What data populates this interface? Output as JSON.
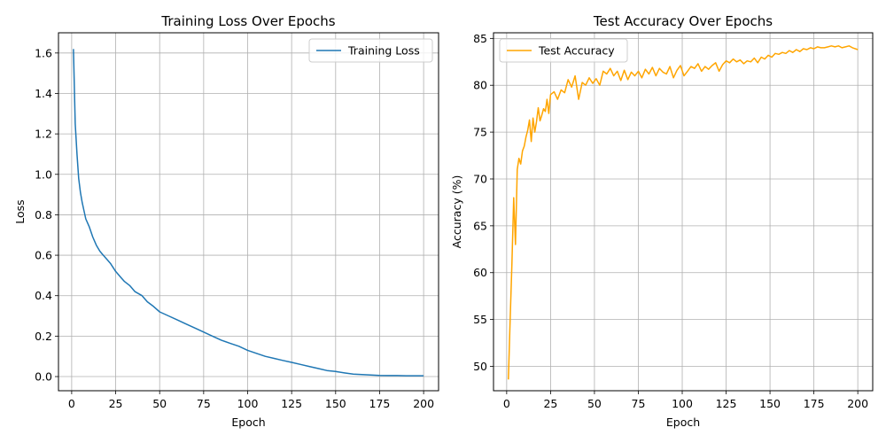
{
  "chart_data": [
    {
      "type": "line",
      "title": "Training Loss Over Epochs",
      "xlabel": "Epoch",
      "ylabel": "Loss",
      "xlim": [
        -7.5,
        208.5
      ],
      "ylim": [
        -0.07,
        1.7
      ],
      "xticks": [
        0,
        25,
        50,
        75,
        100,
        125,
        150,
        175,
        200
      ],
      "yticks": [
        0.0,
        0.2,
        0.4,
        0.6,
        0.8,
        1.0,
        1.2,
        1.4,
        1.6
      ],
      "ytick_labels": [
        "0.0",
        "0.2",
        "0.4",
        "0.6",
        "0.8",
        "1.0",
        "1.2",
        "1.4",
        "1.6"
      ],
      "grid": true,
      "legend_position": "top-right",
      "series": [
        {
          "name": "Training Loss",
          "color": "#1f77b4",
          "x": [
            1,
            2,
            3,
            4,
            5,
            6,
            7,
            8,
            9,
            10,
            12,
            14,
            16,
            18,
            20,
            22,
            25,
            28,
            30,
            33,
            36,
            40,
            43,
            46,
            50,
            55,
            60,
            65,
            70,
            75,
            80,
            85,
            90,
            95,
            100,
            105,
            110,
            115,
            120,
            125,
            130,
            135,
            140,
            145,
            150,
            155,
            160,
            165,
            170,
            175,
            180,
            185,
            190,
            195,
            200
          ],
          "y": [
            1.62,
            1.25,
            1.1,
            0.98,
            0.91,
            0.86,
            0.82,
            0.78,
            0.76,
            0.74,
            0.69,
            0.65,
            0.62,
            0.6,
            0.58,
            0.56,
            0.52,
            0.49,
            0.47,
            0.45,
            0.42,
            0.4,
            0.37,
            0.35,
            0.32,
            0.3,
            0.28,
            0.26,
            0.24,
            0.22,
            0.2,
            0.18,
            0.165,
            0.15,
            0.13,
            0.115,
            0.1,
            0.09,
            0.08,
            0.07,
            0.06,
            0.05,
            0.04,
            0.03,
            0.025,
            0.018,
            0.012,
            0.01,
            0.008,
            0.006,
            0.005,
            0.005,
            0.004,
            0.004,
            0.004
          ]
        }
      ]
    },
    {
      "type": "line",
      "title": "Test Accuracy Over Epochs",
      "xlabel": "Epoch",
      "ylabel": "Accuracy (%)",
      "xlim": [
        -7.5,
        208.5
      ],
      "ylim": [
        47.4,
        85.6
      ],
      "xticks": [
        0,
        25,
        50,
        75,
        100,
        125,
        150,
        175,
        200
      ],
      "yticks": [
        50,
        55,
        60,
        65,
        70,
        75,
        80,
        85
      ],
      "ytick_labels": [
        "50",
        "55",
        "60",
        "65",
        "70",
        "75",
        "80",
        "85"
      ],
      "grid": true,
      "legend_position": "top-left",
      "series": [
        {
          "name": "Test Accuracy",
          "color": "#ffa500",
          "x": [
            1,
            2,
            3,
            4,
            5,
            6,
            7,
            8,
            9,
            10,
            11,
            12,
            13,
            14,
            15,
            16,
            17,
            18,
            19,
            20,
            21,
            22,
            23,
            24,
            25,
            27,
            29,
            31,
            33,
            35,
            37,
            39,
            41,
            43,
            45,
            47,
            49,
            51,
            53,
            55,
            57,
            59,
            61,
            63,
            65,
            67,
            69,
            71,
            73,
            75,
            77,
            79,
            81,
            83,
            85,
            87,
            89,
            91,
            93,
            95,
            97,
            99,
            101,
            103,
            105,
            107,
            109,
            111,
            113,
            115,
            117,
            119,
            121,
            123,
            125,
            127,
            129,
            131,
            133,
            135,
            137,
            139,
            141,
            143,
            145,
            147,
            149,
            151,
            153,
            155,
            157,
            159,
            161,
            163,
            165,
            167,
            169,
            171,
            173,
            175,
            177,
            179,
            181,
            183,
            185,
            187,
            189,
            191,
            193,
            195,
            197,
            200
          ],
          "y": [
            48.6,
            55.0,
            61.0,
            68.0,
            63.0,
            71.0,
            72.2,
            71.6,
            73.0,
            73.5,
            74.5,
            75.2,
            76.3,
            74.0,
            76.5,
            75.0,
            76.1,
            77.6,
            76.2,
            76.8,
            77.5,
            77.2,
            78.5,
            77.0,
            79.0,
            79.3,
            78.5,
            79.5,
            79.2,
            80.6,
            79.8,
            81.0,
            78.5,
            80.3,
            80.0,
            80.8,
            80.2,
            80.7,
            80.0,
            81.5,
            81.2,
            81.8,
            81.0,
            81.5,
            80.5,
            81.6,
            80.6,
            81.4,
            81.0,
            81.5,
            80.8,
            81.7,
            81.2,
            81.9,
            81.0,
            81.8,
            81.4,
            81.2,
            82.0,
            80.8,
            81.6,
            82.1,
            81.0,
            81.5,
            82.0,
            81.8,
            82.3,
            81.5,
            82.0,
            81.7,
            82.1,
            82.4,
            81.5,
            82.2,
            82.6,
            82.4,
            82.8,
            82.5,
            82.7,
            82.3,
            82.6,
            82.5,
            82.9,
            82.4,
            83.0,
            82.8,
            83.2,
            83.0,
            83.4,
            83.3,
            83.5,
            83.4,
            83.7,
            83.5,
            83.8,
            83.6,
            83.9,
            83.8,
            84.0,
            83.9,
            84.1,
            84.0,
            84.0,
            84.1,
            84.2,
            84.1,
            84.2,
            84.0,
            84.1,
            84.2,
            84.0,
            83.8
          ]
        }
      ]
    }
  ]
}
